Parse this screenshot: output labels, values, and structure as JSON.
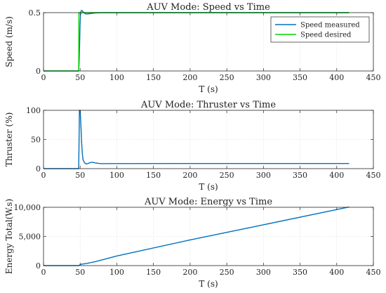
{
  "chart_data": [
    {
      "type": "line",
      "title": "AUV Mode: Speed vs Time",
      "xlabel": "T (s)",
      "ylabel": "Speed (m/s)",
      "xlim": [
        0,
        450
      ],
      "ylim": [
        0,
        0.5
      ],
      "xticks": [
        0,
        50,
        100,
        150,
        200,
        250,
        300,
        350,
        400,
        450
      ],
      "xtick_labels": [
        "0",
        "50",
        "100",
        "150",
        "200",
        "250",
        "300",
        "350",
        "400",
        "450"
      ],
      "yticks": [
        0,
        0.5
      ],
      "ytick_labels": [
        "0",
        "0.5"
      ],
      "grid": "dotted",
      "legend_position": "top-right",
      "series": [
        {
          "name": "Speed measured",
          "color": "#0072BD",
          "x": [
            0,
            48,
            48.6,
            49.2,
            49.8,
            50.4,
            51,
            52,
            53,
            55,
            57,
            60,
            64,
            70,
            80,
            100,
            200,
            300,
            417
          ],
          "y": [
            0,
            0,
            0.08,
            0.22,
            0.38,
            0.48,
            0.51,
            0.52,
            0.515,
            0.5,
            0.49,
            0.488,
            0.492,
            0.497,
            0.5,
            0.5,
            0.5,
            0.5,
            0.5
          ]
        },
        {
          "name": "Speed desired",
          "color": "#00D400",
          "x": [
            0,
            48,
            48.3,
            417
          ],
          "y": [
            0,
            0,
            0.5,
            0.5
          ]
        }
      ]
    },
    {
      "type": "line",
      "title": "AUV Mode: Thruster vs Time",
      "xlabel": "T (s)",
      "ylabel": "Thruster (%)",
      "xlim": [
        0,
        450
      ],
      "ylim": [
        0,
        100
      ],
      "xticks": [
        0,
        50,
        100,
        150,
        200,
        250,
        300,
        350,
        400,
        450
      ],
      "xtick_labels": [
        "0",
        "50",
        "100",
        "150",
        "200",
        "250",
        "300",
        "350",
        "400",
        "450"
      ],
      "yticks": [
        0,
        50,
        100
      ],
      "ytick_labels": [
        "0",
        "50",
        "100"
      ],
      "grid": "dotted",
      "series": [
        {
          "color": "#0072BD",
          "x": [
            0,
            48,
            48.5,
            49,
            50,
            51,
            52,
            53,
            54,
            56,
            58,
            60,
            63,
            66,
            70,
            75,
            80,
            90,
            100,
            200,
            300,
            417
          ],
          "y": [
            0,
            0,
            50,
            100,
            100,
            75,
            45,
            25,
            15,
            10,
            8,
            8.5,
            10,
            11,
            10,
            9,
            8.5,
            8.6,
            8.7,
            8.8,
            8.8,
            8.8
          ]
        }
      ]
    },
    {
      "type": "line",
      "title": "AUV Mode: Energy vs Time",
      "xlabel": "T (s)",
      "ylabel": "Energy Total(W.s)",
      "xlim": [
        0,
        450
      ],
      "ylim": [
        0,
        10000
      ],
      "xticks": [
        0,
        50,
        100,
        150,
        200,
        250,
        300,
        350,
        400,
        450
      ],
      "xtick_labels": [
        "0",
        "50",
        "100",
        "150",
        "200",
        "250",
        "300",
        "350",
        "400",
        "450"
      ],
      "yticks": [
        0,
        5000,
        10000
      ],
      "ytick_labels": [
        "0",
        "5,000",
        "10,000"
      ],
      "grid": "dotted",
      "series": [
        {
          "color": "#0072BD",
          "x": [
            0,
            48,
            50,
            52,
            55,
            60,
            70,
            100,
            200,
            300,
            417
          ],
          "y": [
            0,
            0,
            150,
            250,
            300,
            400,
            650,
            1650,
            4400,
            7000,
            10050
          ]
        }
      ]
    }
  ]
}
